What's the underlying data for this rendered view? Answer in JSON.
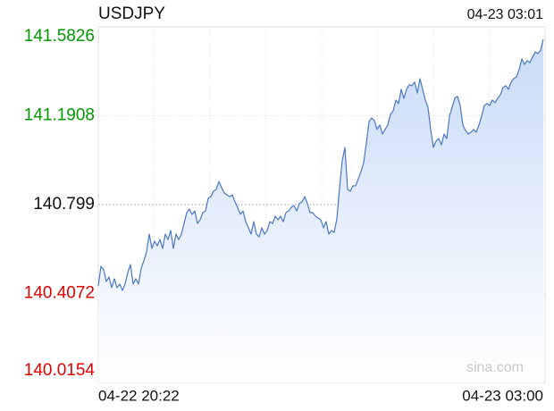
{
  "chart_data": {
    "type": "line",
    "title": "USDJPY",
    "timestamp": "04-23 03:01",
    "watermark": "sina.com",
    "x_axis_labels": [
      "04-22 20:22",
      "04-23 03:00"
    ],
    "ylim": [
      140.0154,
      141.5826
    ],
    "yticks": [
      141.5826,
      141.1908,
      140.799,
      140.4072,
      140.0154
    ],
    "up_color": "#009900",
    "down_color": "#e00000",
    "grid": true,
    "series": [
      {
        "name": "USDJPY",
        "color": "#4a78c2",
        "values": [
          140.441,
          140.527,
          140.512,
          140.46,
          140.48,
          140.433,
          140.472,
          140.433,
          140.449,
          140.421,
          140.449,
          140.5,
          140.535,
          140.449,
          140.472,
          140.449,
          140.519,
          140.551,
          140.59,
          140.669,
          140.606,
          140.638,
          140.618,
          140.645,
          140.606,
          140.669,
          140.645,
          140.685,
          140.606,
          140.669,
          140.645,
          140.669,
          140.716,
          140.764,
          140.779,
          140.756,
          140.771,
          140.716,
          140.732,
          140.764,
          140.771,
          140.827,
          140.834,
          140.858,
          140.866,
          140.901,
          140.874,
          140.85,
          140.842,
          140.834,
          140.842,
          140.811,
          140.787,
          140.756,
          140.771,
          140.724,
          140.697,
          140.669,
          140.724,
          140.669,
          140.657,
          140.697,
          140.669,
          140.685,
          140.724,
          140.716,
          140.748,
          140.732,
          140.748,
          140.724,
          140.764,
          140.771,
          140.787,
          140.795,
          140.771,
          140.803,
          140.811,
          140.834,
          140.803,
          140.764,
          140.764,
          140.748,
          140.74,
          140.732,
          140.697,
          140.724,
          140.669,
          140.685,
          140.677,
          140.736,
          140.874,
          140.992,
          141.051,
          140.866,
          140.858,
          140.882,
          140.882,
          140.913,
          140.945,
          140.984,
          141.071,
          141.165,
          141.181,
          141.169,
          141.13,
          141.15,
          141.11,
          141.13,
          141.15,
          141.197,
          141.212,
          141.26,
          141.244,
          141.307,
          141.268,
          141.307,
          141.327,
          141.323,
          141.339,
          141.291,
          141.354,
          141.307,
          141.26,
          141.228,
          141.13,
          141.051,
          141.079,
          141.09,
          141.063,
          141.11,
          141.09,
          141.189,
          141.228,
          141.268,
          141.276,
          141.236,
          141.15,
          141.126,
          141.11,
          141.118,
          141.13,
          141.118,
          141.15,
          141.189,
          141.236,
          141.244,
          141.236,
          141.26,
          141.248,
          141.268,
          141.283,
          141.315,
          141.323,
          141.307,
          141.339,
          141.354,
          141.362,
          141.394,
          141.441,
          141.417,
          141.433,
          141.425,
          141.449,
          141.472,
          141.465,
          141.48,
          141.528
        ]
      }
    ]
  }
}
